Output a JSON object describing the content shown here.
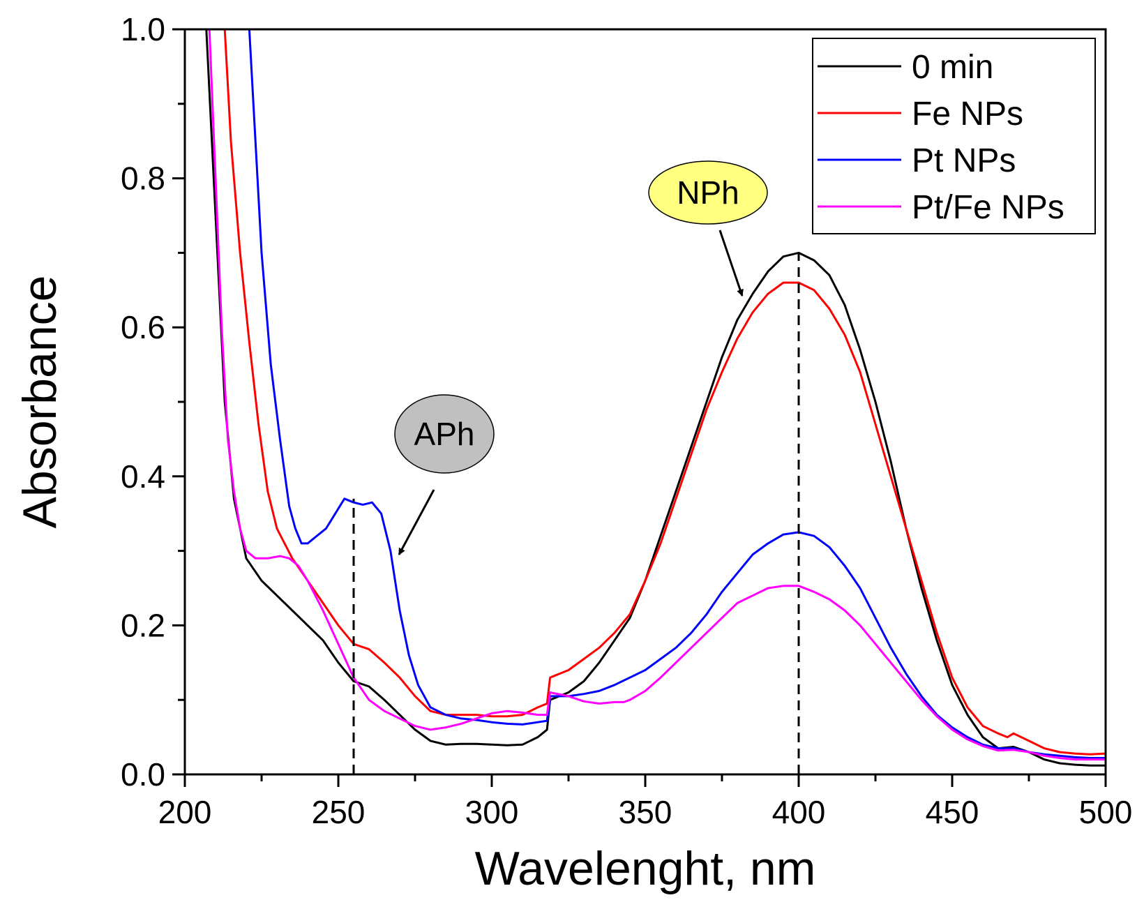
{
  "chart_data": {
    "type": "line",
    "title": "",
    "xlabel": "Wavelenght, nm",
    "ylabel": "Absorbance",
    "xlim": [
      200,
      500
    ],
    "ylim": [
      0.0,
      1.0
    ],
    "xticks": [
      200,
      250,
      300,
      350,
      400,
      450,
      500
    ],
    "xtick_labels": [
      "200",
      "250",
      "300",
      "350",
      "400",
      "450",
      "500"
    ],
    "yticks": [
      0.0,
      0.2,
      0.4,
      0.6,
      0.8,
      1.0
    ],
    "ytick_labels": [
      "0.0",
      "0.2",
      "0.4",
      "0.6",
      "0.8",
      "1.0"
    ],
    "grid": false,
    "legend_position": "top-right",
    "series": [
      {
        "name": "0 min",
        "color": "#000000",
        "points": [
          [
            207,
            1.0
          ],
          [
            210,
            0.75
          ],
          [
            213,
            0.5
          ],
          [
            216,
            0.37
          ],
          [
            220,
            0.29
          ],
          [
            225,
            0.26
          ],
          [
            230,
            0.24
          ],
          [
            235,
            0.22
          ],
          [
            240,
            0.2
          ],
          [
            245,
            0.18
          ],
          [
            250,
            0.15
          ],
          [
            255,
            0.125
          ],
          [
            260,
            0.118
          ],
          [
            265,
            0.1
          ],
          [
            270,
            0.08
          ],
          [
            275,
            0.06
          ],
          [
            280,
            0.045
          ],
          [
            285,
            0.04
          ],
          [
            290,
            0.041
          ],
          [
            295,
            0.041
          ],
          [
            300,
            0.04
          ],
          [
            305,
            0.039
          ],
          [
            310,
            0.04
          ],
          [
            315,
            0.05
          ],
          [
            318,
            0.06
          ],
          [
            319,
            0.1
          ],
          [
            325,
            0.11
          ],
          [
            330,
            0.125
          ],
          [
            335,
            0.15
          ],
          [
            340,
            0.18
          ],
          [
            345,
            0.21
          ],
          [
            350,
            0.26
          ],
          [
            355,
            0.32
          ],
          [
            360,
            0.38
          ],
          [
            365,
            0.44
          ],
          [
            370,
            0.5
          ],
          [
            375,
            0.56
          ],
          [
            380,
            0.61
          ],
          [
            385,
            0.645
          ],
          [
            390,
            0.675
          ],
          [
            395,
            0.695
          ],
          [
            400,
            0.7
          ],
          [
            405,
            0.69
          ],
          [
            410,
            0.67
          ],
          [
            415,
            0.63
          ],
          [
            420,
            0.57
          ],
          [
            425,
            0.5
          ],
          [
            430,
            0.42
          ],
          [
            435,
            0.33
          ],
          [
            440,
            0.25
          ],
          [
            445,
            0.18
          ],
          [
            450,
            0.12
          ],
          [
            455,
            0.08
          ],
          [
            460,
            0.05
          ],
          [
            465,
            0.035
          ],
          [
            470,
            0.037
          ],
          [
            475,
            0.03
          ],
          [
            480,
            0.02
          ],
          [
            485,
            0.015
          ],
          [
            490,
            0.013
          ],
          [
            495,
            0.012
          ],
          [
            500,
            0.012
          ]
        ]
      },
      {
        "name": "Fe NPs",
        "color": "#ff0000",
        "points": [
          [
            213,
            1.0
          ],
          [
            215,
            0.85
          ],
          [
            218,
            0.7
          ],
          [
            221,
            0.58
          ],
          [
            224,
            0.47
          ],
          [
            227,
            0.38
          ],
          [
            230,
            0.33
          ],
          [
            235,
            0.29
          ],
          [
            240,
            0.26
          ],
          [
            245,
            0.23
          ],
          [
            250,
            0.2
          ],
          [
            255,
            0.175
          ],
          [
            260,
            0.168
          ],
          [
            265,
            0.15
          ],
          [
            270,
            0.13
          ],
          [
            275,
            0.105
          ],
          [
            280,
            0.085
          ],
          [
            285,
            0.08
          ],
          [
            290,
            0.08
          ],
          [
            295,
            0.08
          ],
          [
            300,
            0.078
          ],
          [
            305,
            0.078
          ],
          [
            310,
            0.08
          ],
          [
            315,
            0.09
          ],
          [
            318,
            0.095
          ],
          [
            319,
            0.13
          ],
          [
            325,
            0.14
          ],
          [
            330,
            0.155
          ],
          [
            335,
            0.17
          ],
          [
            340,
            0.19
          ],
          [
            345,
            0.215
          ],
          [
            350,
            0.26
          ],
          [
            355,
            0.31
          ],
          [
            360,
            0.37
          ],
          [
            365,
            0.43
          ],
          [
            370,
            0.49
          ],
          [
            375,
            0.54
          ],
          [
            380,
            0.585
          ],
          [
            385,
            0.62
          ],
          [
            390,
            0.645
          ],
          [
            395,
            0.66
          ],
          [
            400,
            0.66
          ],
          [
            405,
            0.65
          ],
          [
            410,
            0.625
          ],
          [
            415,
            0.59
          ],
          [
            420,
            0.54
          ],
          [
            425,
            0.47
          ],
          [
            430,
            0.4
          ],
          [
            435,
            0.33
          ],
          [
            440,
            0.26
          ],
          [
            445,
            0.19
          ],
          [
            450,
            0.13
          ],
          [
            455,
            0.09
          ],
          [
            460,
            0.065
          ],
          [
            465,
            0.055
          ],
          [
            468,
            0.05
          ],
          [
            470,
            0.055
          ],
          [
            475,
            0.045
          ],
          [
            480,
            0.035
          ],
          [
            485,
            0.03
          ],
          [
            490,
            0.028
          ],
          [
            495,
            0.027
          ],
          [
            500,
            0.028
          ]
        ]
      },
      {
        "name": "Pt NPs",
        "color": "#0000ff",
        "points": [
          [
            221,
            1.0
          ],
          [
            223,
            0.85
          ],
          [
            225,
            0.7
          ],
          [
            228,
            0.55
          ],
          [
            231,
            0.45
          ],
          [
            234,
            0.36
          ],
          [
            236,
            0.33
          ],
          [
            238,
            0.31
          ],
          [
            240,
            0.31
          ],
          [
            243,
            0.32
          ],
          [
            246,
            0.33
          ],
          [
            249,
            0.35
          ],
          [
            252,
            0.37
          ],
          [
            255,
            0.365
          ],
          [
            258,
            0.362
          ],
          [
            261,
            0.365
          ],
          [
            264,
            0.35
          ],
          [
            267,
            0.3
          ],
          [
            270,
            0.22
          ],
          [
            273,
            0.16
          ],
          [
            276,
            0.12
          ],
          [
            280,
            0.09
          ],
          [
            285,
            0.08
          ],
          [
            290,
            0.075
          ],
          [
            295,
            0.073
          ],
          [
            300,
            0.07
          ],
          [
            305,
            0.068
          ],
          [
            310,
            0.067
          ],
          [
            315,
            0.07
          ],
          [
            318,
            0.072
          ],
          [
            319,
            0.105
          ],
          [
            325,
            0.105
          ],
          [
            330,
            0.108
          ],
          [
            335,
            0.112
          ],
          [
            340,
            0.12
          ],
          [
            345,
            0.13
          ],
          [
            350,
            0.14
          ],
          [
            355,
            0.155
          ],
          [
            360,
            0.17
          ],
          [
            365,
            0.19
          ],
          [
            370,
            0.215
          ],
          [
            375,
            0.245
          ],
          [
            380,
            0.27
          ],
          [
            385,
            0.295
          ],
          [
            390,
            0.31
          ],
          [
            395,
            0.322
          ],
          [
            400,
            0.325
          ],
          [
            405,
            0.32
          ],
          [
            410,
            0.305
          ],
          [
            415,
            0.28
          ],
          [
            420,
            0.25
          ],
          [
            425,
            0.21
          ],
          [
            430,
            0.17
          ],
          [
            435,
            0.135
          ],
          [
            440,
            0.105
          ],
          [
            445,
            0.08
          ],
          [
            450,
            0.063
          ],
          [
            455,
            0.05
          ],
          [
            460,
            0.04
          ],
          [
            465,
            0.035
          ],
          [
            470,
            0.035
          ],
          [
            475,
            0.03
          ],
          [
            480,
            0.027
          ],
          [
            485,
            0.025
          ],
          [
            490,
            0.023
          ],
          [
            495,
            0.022
          ],
          [
            500,
            0.022
          ]
        ]
      },
      {
        "name": "Pt/Fe NPs",
        "color": "#ff00ff",
        "points": [
          [
            208,
            1.0
          ],
          [
            210,
            0.8
          ],
          [
            212,
            0.6
          ],
          [
            214,
            0.45
          ],
          [
            216,
            0.38
          ],
          [
            218,
            0.33
          ],
          [
            220,
            0.3
          ],
          [
            223,
            0.29
          ],
          [
            227,
            0.29
          ],
          [
            231,
            0.293
          ],
          [
            234,
            0.29
          ],
          [
            237,
            0.28
          ],
          [
            240,
            0.26
          ],
          [
            245,
            0.22
          ],
          [
            250,
            0.175
          ],
          [
            255,
            0.13
          ],
          [
            260,
            0.1
          ],
          [
            265,
            0.085
          ],
          [
            270,
            0.075
          ],
          [
            275,
            0.065
          ],
          [
            280,
            0.06
          ],
          [
            285,
            0.063
          ],
          [
            290,
            0.068
          ],
          [
            295,
            0.075
          ],
          [
            300,
            0.082
          ],
          [
            305,
            0.085
          ],
          [
            310,
            0.083
          ],
          [
            315,
            0.08
          ],
          [
            318,
            0.08
          ],
          [
            319,
            0.11
          ],
          [
            325,
            0.105
          ],
          [
            330,
            0.098
          ],
          [
            335,
            0.095
          ],
          [
            340,
            0.097
          ],
          [
            343,
            0.097
          ],
          [
            345,
            0.1
          ],
          [
            350,
            0.112
          ],
          [
            355,
            0.13
          ],
          [
            360,
            0.15
          ],
          [
            365,
            0.17
          ],
          [
            370,
            0.19
          ],
          [
            375,
            0.21
          ],
          [
            380,
            0.23
          ],
          [
            385,
            0.24
          ],
          [
            390,
            0.25
          ],
          [
            395,
            0.253
          ],
          [
            400,
            0.253
          ],
          [
            405,
            0.245
          ],
          [
            410,
            0.235
          ],
          [
            415,
            0.22
          ],
          [
            420,
            0.2
          ],
          [
            425,
            0.175
          ],
          [
            430,
            0.15
          ],
          [
            435,
            0.125
          ],
          [
            440,
            0.1
          ],
          [
            445,
            0.078
          ],
          [
            450,
            0.06
          ],
          [
            455,
            0.047
          ],
          [
            460,
            0.038
          ],
          [
            465,
            0.032
          ],
          [
            470,
            0.033
          ],
          [
            475,
            0.03
          ],
          [
            480,
            0.025
          ],
          [
            485,
            0.022
          ],
          [
            490,
            0.02
          ],
          [
            495,
            0.02
          ],
          [
            500,
            0.02
          ]
        ]
      }
    ],
    "reference_lines": [
      {
        "name": "APh-marker",
        "x": 255,
        "y_top": 0.37
      },
      {
        "name": "NPh-marker",
        "x": 400,
        "y_top": 0.7
      }
    ],
    "annotations": [
      {
        "name": "NPh",
        "text": "NPh",
        "fill": "#ffff80",
        "arrow_to": [
          386,
          0.63
        ]
      },
      {
        "name": "APh",
        "text": "APh",
        "fill": "#c0c0c0",
        "arrow_to": [
          270,
          0.29
        ]
      }
    ]
  }
}
